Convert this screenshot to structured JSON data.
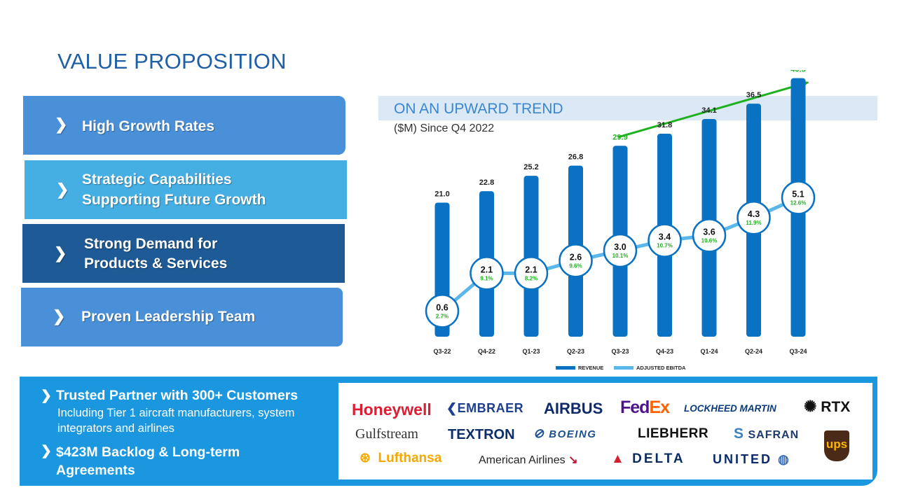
{
  "page_title": "VALUE PROPOSITION",
  "pillars": [
    {
      "lines": [
        "High Growth Rates"
      ]
    },
    {
      "lines": [
        "Strategic Capabilities",
        "Supporting Future Growth"
      ]
    },
    {
      "lines": [
        "Strong Demand for",
        "Products & Services"
      ]
    },
    {
      "lines": [
        "Proven Leadership Team"
      ]
    }
  ],
  "chevron_glyph": "❯",
  "trend": {
    "title": "ON AN UPWARD TREND",
    "subtitle": "($M) Since Q4 2022"
  },
  "colors": {
    "revenue_bar": "#0a72c3",
    "ebitda_line": "#5bb7ea",
    "trend_arrow": "#1db21d",
    "margin_text": "#1db21d"
  },
  "chart_data": {
    "type": "bar",
    "title": "ON AN UPWARD TREND",
    "subtitle": "($M) Since Q4 2022",
    "categories": [
      "Q3-22",
      "Q4-22",
      "Q1-23",
      "Q2-23",
      "Q3-23",
      "Q4-23",
      "Q1-24",
      "Q2-24",
      "Q3-24"
    ],
    "series": [
      {
        "name": "REVENUE",
        "values": [
          21.0,
          22.8,
          25.2,
          26.8,
          29.9,
          31.8,
          34.1,
          36.5,
          40.5
        ],
        "value_labels": [
          "21.0",
          "22.8",
          "25.2",
          "26.8",
          "29.9",
          "31.8",
          "34.1",
          "36.5",
          "40.5"
        ],
        "highlighted_labels": [
          4,
          8
        ]
      },
      {
        "name": "ADJUSTED EBITDA",
        "values": [
          0.6,
          2.1,
          2.1,
          2.6,
          3.0,
          3.4,
          3.6,
          4.3,
          5.1
        ],
        "value_labels": [
          "0.6",
          "2.1",
          "2.1",
          "2.6",
          "3.0",
          "3.4",
          "3.6",
          "4.3",
          "5.1"
        ],
        "margins": [
          "2.7%",
          "9.1%",
          "8.2%",
          "9.6%",
          "10.1%",
          "10.7%",
          "10.6%",
          "11.9%",
          "12.6%"
        ]
      }
    ],
    "legend_position": "bottom",
    "grid": false
  },
  "bottom": {
    "bullets": [
      {
        "head": "Trusted Partner with 300+ Customers",
        "sub": "Including Tier 1 aircraft manufacturers, system integrators and airlines"
      },
      {
        "head": "$423M Backlog & Long-term Agreements"
      }
    ]
  },
  "logos": [
    "Honeywell",
    "EMBRAER",
    "AIRBUS",
    "FedEx",
    "LOCKHEED MARTIN",
    "RTX",
    "Gulfstream",
    "TEXTRON",
    "BOEING",
    "LIEBHERR",
    "SAFRAN",
    "ups",
    "Lufthansa",
    "American Airlines",
    "DELTA",
    "UNITED"
  ]
}
